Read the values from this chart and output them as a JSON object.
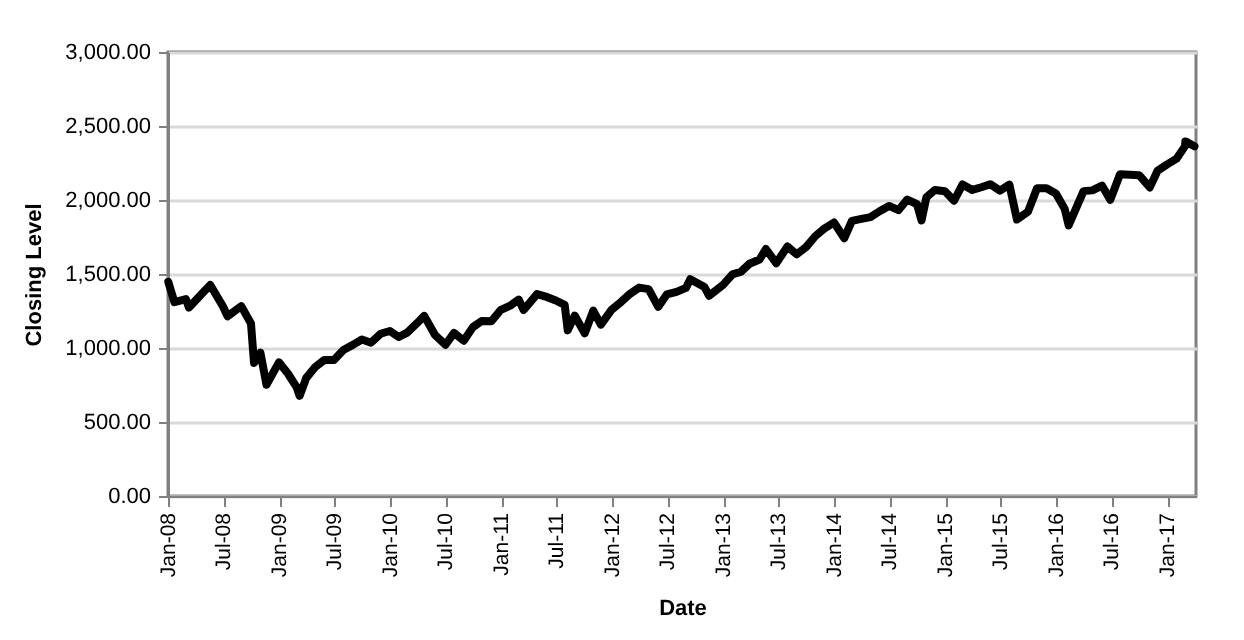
{
  "chart_data": {
    "type": "line",
    "xlabel": "Date",
    "ylabel": "Closing Level",
    "color": "#000000",
    "grid": "y",
    "xlim": [
      "2008-01-01",
      "2017-04-05"
    ],
    "ylim": [
      0,
      3000
    ],
    "yticks": [
      {
        "value": 0,
        "label": "0.00"
      },
      {
        "value": 500,
        "label": "500.00"
      },
      {
        "value": 1000,
        "label": "1,000.00"
      },
      {
        "value": 1500,
        "label": "1,500.00"
      },
      {
        "value": 2000,
        "label": "2,000.00"
      },
      {
        "value": 2500,
        "label": "2,500.00"
      },
      {
        "value": 3000,
        "label": "3,000.00"
      }
    ],
    "xticks": [
      {
        "value": "2008-01-01",
        "label": "Jan-08"
      },
      {
        "value": "2008-07-01",
        "label": "Jul-08"
      },
      {
        "value": "2009-01-01",
        "label": "Jan-09"
      },
      {
        "value": "2009-07-01",
        "label": "Jul-09"
      },
      {
        "value": "2010-01-01",
        "label": "Jan-10"
      },
      {
        "value": "2010-07-01",
        "label": "Jul-10"
      },
      {
        "value": "2011-01-01",
        "label": "Jan-11"
      },
      {
        "value": "2011-07-01",
        "label": "Jul-11"
      },
      {
        "value": "2012-01-01",
        "label": "Jan-12"
      },
      {
        "value": "2012-07-01",
        "label": "Jul-12"
      },
      {
        "value": "2013-01-01",
        "label": "Jan-13"
      },
      {
        "value": "2013-07-01",
        "label": "Jul-13"
      },
      {
        "value": "2014-01-01",
        "label": "Jan-14"
      },
      {
        "value": "2014-07-01",
        "label": "Jul-14"
      },
      {
        "value": "2015-01-01",
        "label": "Jan-15"
      },
      {
        "value": "2015-07-01",
        "label": "Jul-15"
      },
      {
        "value": "2016-01-01",
        "label": "Jan-16"
      },
      {
        "value": "2016-07-01",
        "label": "Jul-16"
      },
      {
        "value": "2017-01-01",
        "label": "Jan-17"
      }
    ],
    "x": [
      "2008-01-02",
      "2008-01-22",
      "2008-02-29",
      "2008-03-10",
      "2008-04-30",
      "2008-05-19",
      "2008-06-30",
      "2008-07-15",
      "2008-08-29",
      "2008-09-30",
      "2008-10-10",
      "2008-10-31",
      "2008-11-20",
      "2008-12-31",
      "2009-01-30",
      "2009-02-27",
      "2009-03-09",
      "2009-03-31",
      "2009-04-30",
      "2009-05-29",
      "2009-06-30",
      "2009-07-31",
      "2009-08-31",
      "2009-09-30",
      "2009-10-30",
      "2009-11-30",
      "2009-12-31",
      "2010-01-29",
      "2010-02-26",
      "2010-03-31",
      "2010-04-23",
      "2010-05-28",
      "2010-07-02",
      "2010-07-30",
      "2010-08-31",
      "2010-09-30",
      "2010-10-29",
      "2010-11-30",
      "2010-12-31",
      "2011-01-31",
      "2011-02-28",
      "2011-03-16",
      "2011-04-29",
      "2011-05-31",
      "2011-06-30",
      "2011-07-29",
      "2011-08-08",
      "2011-08-31",
      "2011-10-03",
      "2011-10-31",
      "2011-11-25",
      "2011-12-30",
      "2012-01-31",
      "2012-02-29",
      "2012-03-30",
      "2012-04-30",
      "2012-06-01",
      "2012-06-29",
      "2012-07-31",
      "2012-08-31",
      "2012-09-14",
      "2012-10-31",
      "2012-11-15",
      "2012-12-31",
      "2013-01-31",
      "2013-02-28",
      "2013-03-28",
      "2013-04-30",
      "2013-05-21",
      "2013-06-24",
      "2013-07-31",
      "2013-08-30",
      "2013-09-30",
      "2013-10-31",
      "2013-11-29",
      "2013-12-31",
      "2014-02-03",
      "2014-02-28",
      "2014-03-31",
      "2014-04-30",
      "2014-05-30",
      "2014-06-30",
      "2014-07-31",
      "2014-08-29",
      "2014-09-30",
      "2014-10-15",
      "2014-10-31",
      "2014-11-28",
      "2014-12-31",
      "2015-01-30",
      "2015-02-27",
      "2015-03-31",
      "2015-04-30",
      "2015-05-29",
      "2015-06-30",
      "2015-07-31",
      "2015-08-25",
      "2015-09-30",
      "2015-10-30",
      "2015-11-30",
      "2015-12-31",
      "2016-01-29",
      "2016-02-11",
      "2016-03-31",
      "2016-04-29",
      "2016-05-31",
      "2016-06-27",
      "2016-07-29",
      "2016-08-31",
      "2016-09-30",
      "2016-11-04",
      "2016-11-30",
      "2016-12-30",
      "2017-01-31",
      "2017-02-28",
      "2017-03-01",
      "2017-03-31"
    ],
    "values": [
      1447,
      1310,
      1330,
      1273,
      1385,
      1426,
      1280,
      1214,
      1283,
      1166,
      899,
      968,
      752,
      903,
      826,
      735,
      677,
      798,
      873,
      919,
      919,
      987,
      1021,
      1057,
      1036,
      1096,
      1115,
      1074,
      1104,
      1169,
      1217,
      1089,
      1022,
      1102,
      1049,
      1141,
      1183,
      1181,
      1258,
      1286,
      1327,
      1257,
      1364,
      1345,
      1321,
      1292,
      1119,
      1219,
      1099,
      1253,
      1158,
      1258,
      1312,
      1366,
      1408,
      1398,
      1278,
      1362,
      1379,
      1406,
      1465,
      1412,
      1353,
      1426,
      1498,
      1515,
      1569,
      1598,
      1669,
      1573,
      1686,
      1633,
      1682,
      1757,
      1806,
      1848,
      1742,
      1859,
      1872,
      1884,
      1924,
      1960,
      1931,
      2003,
      1972,
      1862,
      2018,
      2068,
      2059,
      1995,
      2105,
      2068,
      2086,
      2107,
      2063,
      2104,
      1868,
      1920,
      2079,
      2080,
      2044,
      1940,
      1829,
      2060,
      2065,
      2097,
      2001,
      2174,
      2171,
      2168,
      2085,
      2199,
      2239,
      2279,
      2364,
      2396,
      2363
    ]
  }
}
